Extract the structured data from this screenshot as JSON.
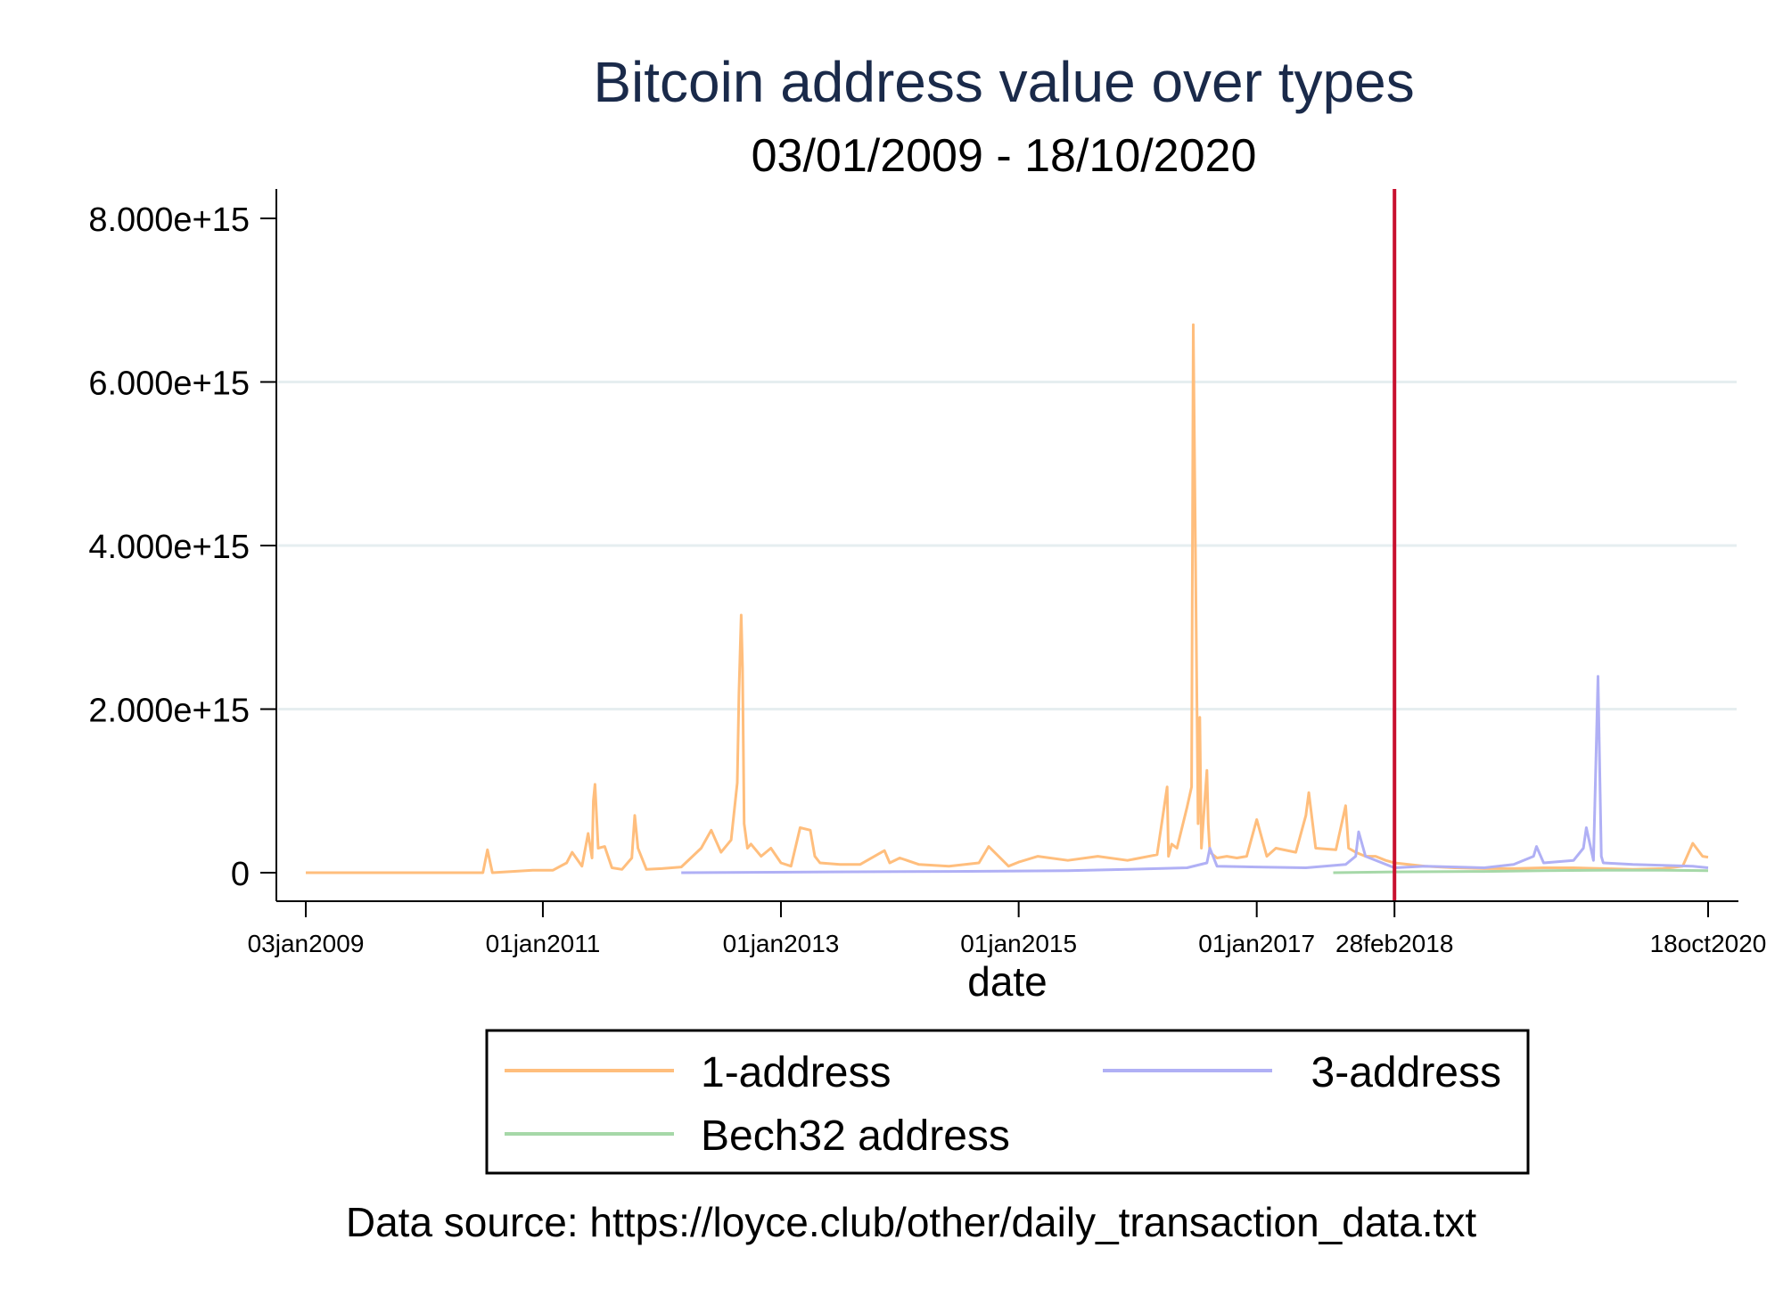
{
  "chart_data": {
    "type": "line",
    "title": "Bitcoin address value over types",
    "subtitle": "03/01/2009 - 18/10/2020",
    "xlabel": "date",
    "ylabel": "",
    "caption": "Data source: https://loyce.club/other/daily_transaction_data.txt",
    "ylim": [
      0,
      8000000000000000
    ],
    "y_ticks": [
      {
        "value": 0,
        "label": "0"
      },
      {
        "value": 2000000000000000,
        "label": "2.000e+15"
      },
      {
        "value": 4000000000000000,
        "label": "4.000e+15"
      },
      {
        "value": 6000000000000000,
        "label": "6.000e+15"
      },
      {
        "value": 8000000000000000,
        "label": "8.000e+15"
      }
    ],
    "xlim": [
      "2009-01-03",
      "2020-10-18"
    ],
    "x_ticks": [
      {
        "value": "2009-01-03",
        "label": "03jan2009"
      },
      {
        "value": "2011-01-01",
        "label": "01jan2011"
      },
      {
        "value": "2013-01-01",
        "label": "01jan2013"
      },
      {
        "value": "2015-01-01",
        "label": "01jan2015"
      },
      {
        "value": "2017-01-01",
        "label": "01jan2017"
      },
      {
        "value": "2018-02-28",
        "label": "28feb2018"
      },
      {
        "value": "2020-10-18",
        "label": "18oct2020"
      }
    ],
    "grid": "horizontal",
    "vline": {
      "x": "2018-02-28",
      "color": "#c8102e"
    },
    "legend_position": "bottom",
    "colors": {
      "one_address": "#ffbe7d",
      "three_address": "#b0b0f5",
      "bech32_address": "#a6d8a8",
      "vline": "#c8102e",
      "title": "#1a2a4a",
      "grid": "#e6eef0"
    },
    "series": [
      {
        "name": "1-address",
        "color": "#ffbe7d",
        "x": [
          "2009-01-03",
          "2010-07-01",
          "2010-07-15",
          "2010-07-30",
          "2010-12-01",
          "2011-02-01",
          "2011-03-15",
          "2011-04-01",
          "2011-05-01",
          "2011-05-20",
          "2011-06-01",
          "2011-06-05",
          "2011-06-10",
          "2011-06-20",
          "2011-07-10",
          "2011-08-01",
          "2011-09-01",
          "2011-10-01",
          "2011-10-10",
          "2011-10-20",
          "2011-11-15",
          "2012-01-01",
          "2012-03-01",
          "2012-05-01",
          "2012-06-01",
          "2012-07-01",
          "2012-08-01",
          "2012-08-20",
          "2012-08-25",
          "2012-09-01",
          "2012-09-05",
          "2012-09-10",
          "2012-09-20",
          "2012-10-01",
          "2012-11-01",
          "2012-12-01",
          "2013-01-01",
          "2013-02-01",
          "2013-03-01",
          "2013-04-01",
          "2013-04-15",
          "2013-05-01",
          "2013-07-01",
          "2013-09-01",
          "2013-11-15",
          "2013-12-01",
          "2014-01-01",
          "2014-03-01",
          "2014-06-01",
          "2014-09-01",
          "2014-10-01",
          "2014-12-01",
          "2015-01-01",
          "2015-03-01",
          "2015-06-01",
          "2015-09-01",
          "2015-12-01",
          "2016-03-01",
          "2016-04-01",
          "2016-04-05",
          "2016-04-15",
          "2016-05-01",
          "2016-06-01",
          "2016-06-15",
          "2016-06-20",
          "2016-07-05",
          "2016-07-10",
          "2016-07-15",
          "2016-08-01",
          "2016-08-05",
          "2016-08-10",
          "2016-09-01",
          "2016-10-01",
          "2016-11-01",
          "2016-12-01",
          "2017-01-01",
          "2017-02-01",
          "2017-03-01",
          "2017-05-01",
          "2017-06-01",
          "2017-06-10",
          "2017-07-01",
          "2017-09-01",
          "2017-10-01",
          "2017-10-10",
          "2017-11-01",
          "2017-12-01",
          "2018-01-01",
          "2018-02-01",
          "2018-02-28",
          "2018-06-01",
          "2018-09-01",
          "2018-12-01",
          "2019-03-01",
          "2019-06-01",
          "2019-09-01",
          "2019-12-01",
          "2020-03-01",
          "2020-06-01",
          "2020-08-01",
          "2020-09-01",
          "2020-10-01",
          "2020-10-18"
        ],
        "values": [
          0,
          0,
          280000000000000,
          0,
          30000000000000,
          30000000000000,
          120000000000000,
          250000000000000,
          80000000000000,
          480000000000000,
          180000000000000,
          880000000000000,
          1080000000000000,
          300000000000000,
          320000000000000,
          60000000000000,
          40000000000000,
          180000000000000,
          700000000000000,
          300000000000000,
          40000000000000,
          50000000000000,
          70000000000000,
          300000000000000,
          520000000000000,
          250000000000000,
          400000000000000,
          1100000000000000,
          2200000000000000,
          3150000000000000,
          2500000000000000,
          600000000000000,
          300000000000000,
          350000000000000,
          200000000000000,
          300000000000000,
          120000000000000,
          80000000000000,
          550000000000000,
          520000000000000,
          200000000000000,
          120000000000000,
          100000000000000,
          100000000000000,
          270000000000000,
          120000000000000,
          180000000000000,
          100000000000000,
          80000000000000,
          120000000000000,
          320000000000000,
          80000000000000,
          130000000000000,
          200000000000000,
          150000000000000,
          200000000000000,
          150000000000000,
          220000000000000,
          1050000000000000,
          200000000000000,
          350000000000000,
          300000000000000,
          800000000000000,
          1050000000000000,
          6700000000000000,
          600000000000000,
          1900000000000000,
          300000000000000,
          1250000000000000,
          600000000000000,
          250000000000000,
          180000000000000,
          200000000000000,
          180000000000000,
          200000000000000,
          650000000000000,
          200000000000000,
          300000000000000,
          250000000000000,
          700000000000000,
          980000000000000,
          300000000000000,
          280000000000000,
          820000000000000,
          300000000000000,
          250000000000000,
          200000000000000,
          200000000000000,
          150000000000000,
          120000000000000,
          80000000000000,
          60000000000000,
          50000000000000,
          50000000000000,
          60000000000000,
          60000000000000,
          50000000000000,
          40000000000000,
          50000000000000,
          80000000000000,
          360000000000000,
          200000000000000,
          190000000000000
        ]
      },
      {
        "name": "3-address",
        "color": "#b0b0f5",
        "x": [
          "2012-03-01",
          "2013-06-01",
          "2014-06-01",
          "2015-06-01",
          "2015-12-01",
          "2016-06-01",
          "2016-08-01",
          "2016-08-10",
          "2016-09-01",
          "2017-01-01",
          "2017-06-01",
          "2017-10-01",
          "2017-11-01",
          "2017-11-10",
          "2017-12-01",
          "2018-02-28",
          "2018-06-01",
          "2018-12-01",
          "2019-03-01",
          "2019-05-01",
          "2019-05-10",
          "2019-06-01",
          "2019-09-01",
          "2019-10-01",
          "2019-10-10",
          "2019-11-01",
          "2019-11-15",
          "2019-11-25",
          "2019-12-01",
          "2020-03-01",
          "2020-06-01",
          "2020-09-01",
          "2020-10-18"
        ],
        "values": [
          0,
          10000000000000,
          15000000000000,
          25000000000000,
          40000000000000,
          60000000000000,
          120000000000000,
          300000000000000,
          80000000000000,
          70000000000000,
          60000000000000,
          100000000000000,
          200000000000000,
          500000000000000,
          200000000000000,
          60000000000000,
          80000000000000,
          60000000000000,
          100000000000000,
          200000000000000,
          320000000000000,
          120000000000000,
          150000000000000,
          300000000000000,
          550000000000000,
          150000000000000,
          2400000000000000,
          200000000000000,
          120000000000000,
          100000000000000,
          90000000000000,
          80000000000000,
          60000000000000
        ]
      },
      {
        "name": "Bech32 address",
        "color": "#a6d8a8",
        "x": [
          "2017-08-24",
          "2018-02-28",
          "2018-12-01",
          "2019-06-01",
          "2019-12-01",
          "2020-06-01",
          "2020-10-18"
        ],
        "values": [
          0,
          10000000000000,
          15000000000000,
          25000000000000,
          30000000000000,
          30000000000000,
          25000000000000
        ]
      }
    ]
  }
}
